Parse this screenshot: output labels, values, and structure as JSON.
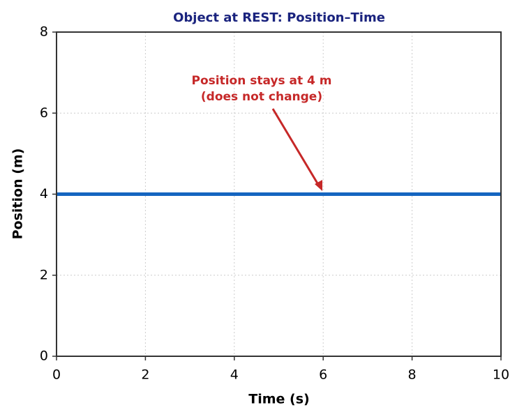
{
  "chart_data": {
    "type": "line",
    "title": "Object at REST: Position–Time",
    "xlabel": "Time (s)",
    "ylabel": "Position (m)",
    "x": [
      0,
      10
    ],
    "series": [
      {
        "name": "Position",
        "color": "#1565c0",
        "values": [
          4,
          4
        ]
      }
    ],
    "xlim": [
      0,
      10
    ],
    "xticks": [
      0,
      2,
      4,
      6,
      8,
      10
    ],
    "ylim": [
      0,
      8
    ],
    "yticks": [
      0,
      2,
      4,
      6,
      8
    ],
    "grid": true,
    "annotation": {
      "lines": [
        "Position stays at 4 m",
        "(does not change)"
      ],
      "color": "#c62828"
    }
  }
}
